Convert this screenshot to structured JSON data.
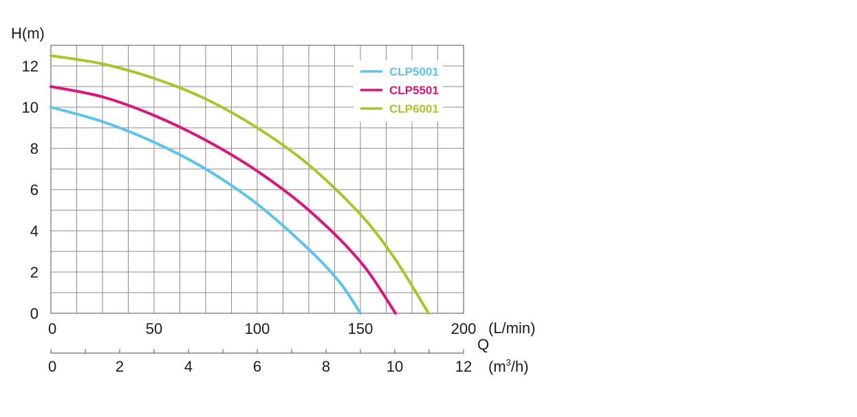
{
  "chart_data": {
    "type": "line",
    "y_axis": {
      "label": "H(m)",
      "min": 0,
      "max": 13,
      "ticks": [
        0,
        2,
        4,
        6,
        8,
        10,
        12
      ]
    },
    "x_axis": {
      "label": "Q",
      "unit": "(L/min)",
      "min": 0,
      "max": 200,
      "ticks": [
        0,
        50,
        100,
        150,
        200
      ]
    },
    "x_axis_secondary": {
      "unit_prefix": "(m",
      "unit_sup": "3",
      "unit_suffix": "/h)",
      "min": 0,
      "max": 12,
      "ticks": [
        0,
        2,
        4,
        6,
        8,
        10,
        12
      ]
    },
    "grid": true,
    "legend_position": "top-right",
    "series": [
      {
        "name": "CLP5001",
        "color": "#5bc4ec",
        "x": [
          0,
          25,
          50,
          75,
          100,
          125,
          140,
          150
        ],
        "y": [
          10,
          9.3,
          8.3,
          7.0,
          5.3,
          3.1,
          1.5,
          0
        ]
      },
      {
        "name": "CLP5501",
        "color": "#e0117e",
        "x": [
          0,
          25,
          50,
          75,
          100,
          125,
          150,
          167
        ],
        "y": [
          11,
          10.5,
          9.6,
          8.4,
          6.9,
          5.0,
          2.5,
          0
        ]
      },
      {
        "name": "CLP6001",
        "color": "#a8c62a",
        "x": [
          0,
          25,
          50,
          75,
          100,
          125,
          150,
          167,
          183
        ],
        "y": [
          12.5,
          12.1,
          11.4,
          10.4,
          9.0,
          7.2,
          4.8,
          2.6,
          0
        ]
      }
    ]
  }
}
